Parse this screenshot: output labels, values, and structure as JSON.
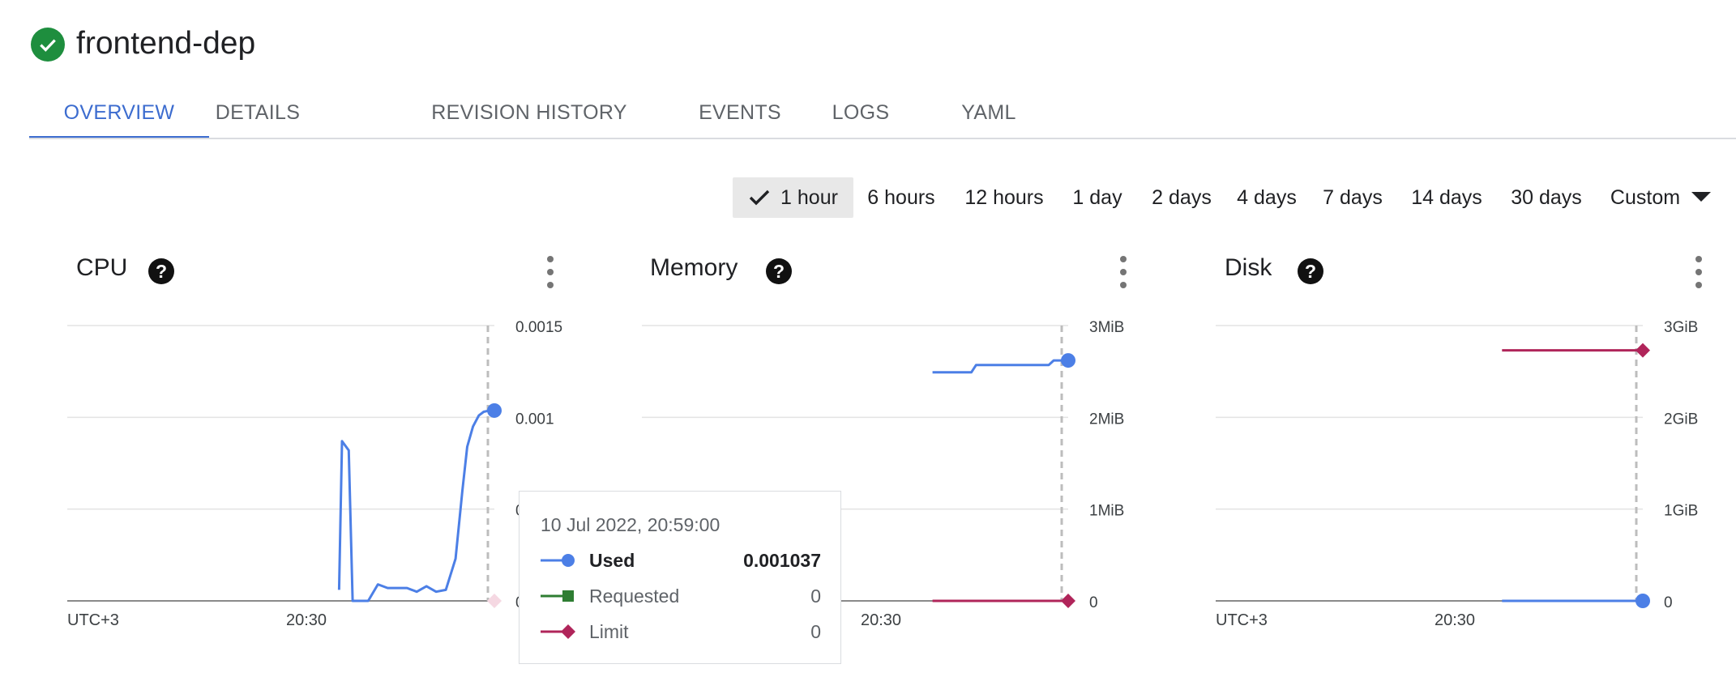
{
  "deployment": {
    "name": "frontend-dep",
    "status_icon": "check-circle-icon"
  },
  "tabs": [
    {
      "label": "OVERVIEW",
      "active": true
    },
    {
      "label": "DETAILS"
    },
    {
      "label": "REVISION HISTORY"
    },
    {
      "label": "EVENTS"
    },
    {
      "label": "LOGS"
    },
    {
      "label": "YAML"
    }
  ],
  "time_range": {
    "selected": "1 hour",
    "options": [
      "1 hour",
      "6 hours",
      "12 hours",
      "1 day",
      "2 days",
      "4 days",
      "7 days",
      "14 days",
      "30 days",
      "Custom"
    ]
  },
  "panels": {
    "cpu": {
      "title": "CPU"
    },
    "memory": {
      "title": "Memory"
    },
    "disk": {
      "title": "Disk"
    }
  },
  "tooltip": {
    "time": "10 Jul 2022, 20:59:00",
    "rows": [
      {
        "label": "Used",
        "value": "0.001037"
      },
      {
        "label": "Requested",
        "value": "0"
      },
      {
        "label": "Limit",
        "value": "0"
      }
    ]
  },
  "colors": {
    "used": "#4c7fe6",
    "requested": "#2e7d32",
    "limit": "#b0255a",
    "accent": "#3c6ccf",
    "success": "#1e8e3e"
  },
  "chart_data": [
    {
      "type": "line",
      "title": "CPU",
      "x_ticks": [
        "UTC+3",
        "20:30"
      ],
      "y_ticks": [
        "0",
        "0.0005",
        "0.001",
        "0.0015"
      ],
      "ylim": [
        0,
        0.0015
      ],
      "x_unit": "minutes past 20:00",
      "series": [
        {
          "name": "Used",
          "color": "#4c7fe6",
          "x": [
            43.0,
            43.3,
            44.0,
            44.4,
            46.0,
            47.0,
            48.0,
            49.0,
            50.0,
            51.0,
            52.0,
            53.0,
            54.0,
            55.0,
            55.7,
            56.2,
            56.8,
            57.4,
            57.9,
            58.3,
            59.0
          ],
          "y": [
            6e-05,
            0.00087,
            0.00082,
            0.0,
            0.0,
            9e-05,
            7e-05,
            7e-05,
            7e-05,
            5e-05,
            8e-05,
            5e-05,
            6e-05,
            0.00023,
            0.0006,
            0.00084,
            0.00095,
            0.00101,
            0.00103,
            0.001035,
            0.001037
          ]
        },
        {
          "name": "Limit",
          "color": "#b0255a",
          "x": [
            59.0
          ],
          "y": [
            0
          ]
        }
      ]
    },
    {
      "type": "line",
      "title": "Memory",
      "x_ticks": [
        "UTC+3",
        "20:30"
      ],
      "y_ticks": [
        "0",
        "1MiB",
        "2MiB",
        "3MiB"
      ],
      "ylim": [
        0,
        3
      ],
      "y_unit": "MiB",
      "series": [
        {
          "name": "Used",
          "color": "#4c7fe6",
          "x": [
            45.0,
            49.0,
            49.5,
            57.0,
            57.5,
            59.0
          ],
          "y": [
            2.49,
            2.49,
            2.57,
            2.57,
            2.62,
            2.62
          ]
        },
        {
          "name": "Limit",
          "color": "#b0255a",
          "x": [
            45.0,
            59.0
          ],
          "y": [
            0,
            0
          ]
        }
      ]
    },
    {
      "type": "line",
      "title": "Disk",
      "x_ticks": [
        "UTC+3",
        "20:30"
      ],
      "y_ticks": [
        "0",
        "1GiB",
        "2GiB",
        "3GiB"
      ],
      "ylim": [
        0,
        3
      ],
      "y_unit": "GiB",
      "series": [
        {
          "name": "Used",
          "color": "#4c7fe6",
          "x": [
            44.5,
            59.0
          ],
          "y": [
            0,
            0
          ]
        },
        {
          "name": "Limit",
          "color": "#b0255a",
          "x": [
            44.5,
            59.0
          ],
          "y": [
            2.73,
            2.73
          ]
        }
      ]
    }
  ]
}
